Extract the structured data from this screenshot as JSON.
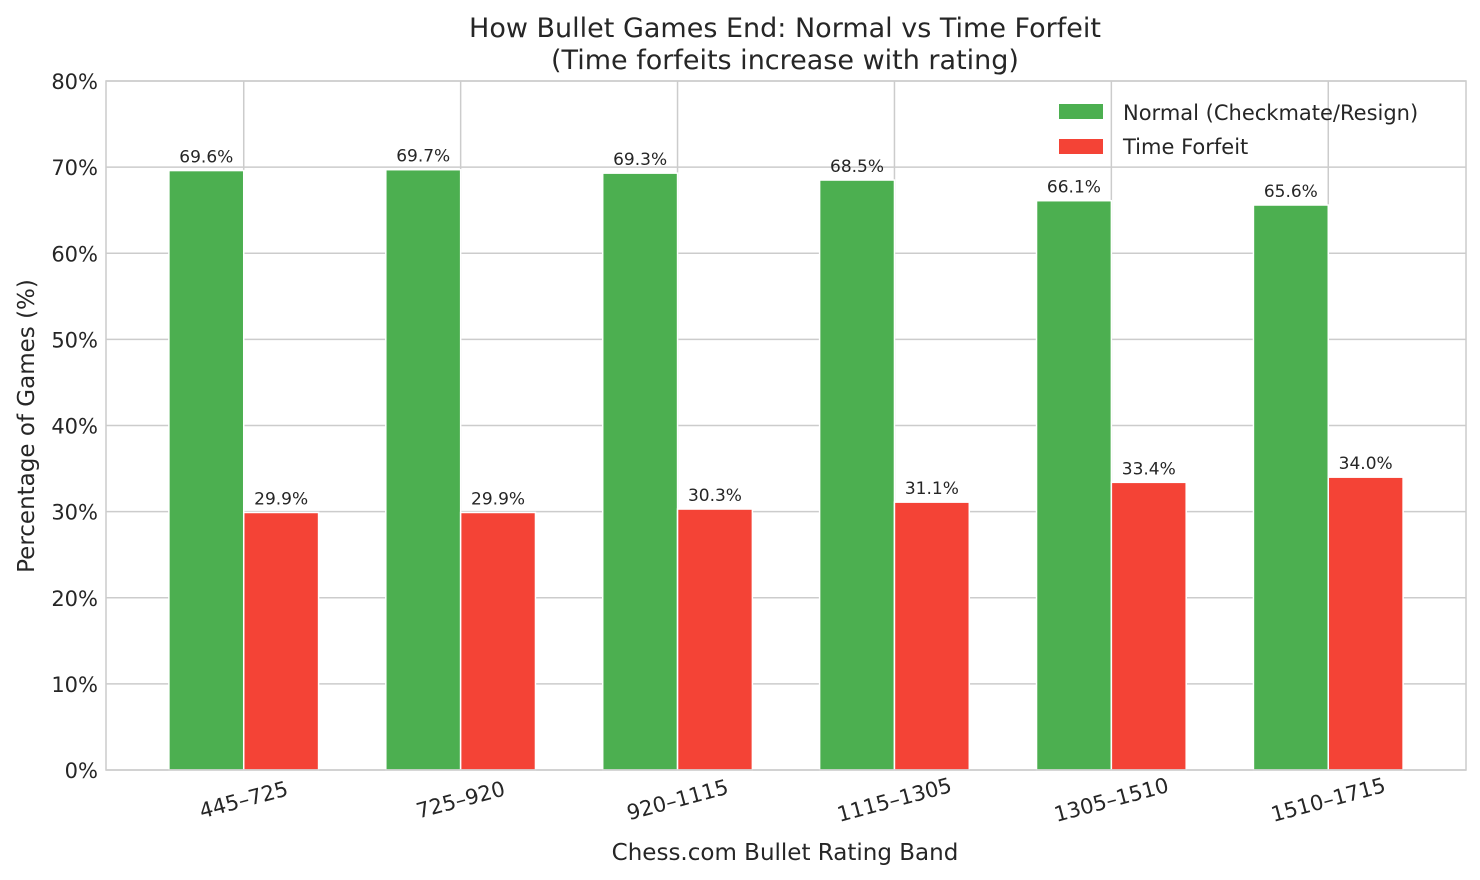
{
  "chart_data": {
    "type": "bar",
    "title": "How Bullet Games End: Normal vs Time Forfeit",
    "subtitle": "(Time forfeits increase with rating)",
    "xlabel": "Chess.com Bullet Rating Band",
    "ylabel": "Percentage of Games (%)",
    "ylim": [
      0,
      80
    ],
    "yticks": [
      "0%",
      "10%",
      "20%",
      "30%",
      "40%",
      "50%",
      "60%",
      "70%",
      "80%"
    ],
    "categories": [
      "445–725",
      "725–920",
      "920–1115",
      "1115–1305",
      "1305–1510",
      "1510–1715"
    ],
    "series": [
      {
        "name": "Normal (Checkmate/Resign)",
        "color": "#4caf50",
        "values": [
          69.6,
          69.7,
          69.3,
          68.5,
          66.1,
          65.6
        ],
        "labels": [
          "69.6%",
          "69.7%",
          "69.3%",
          "68.5%",
          "66.1%",
          "65.6%"
        ]
      },
      {
        "name": "Time Forfeit",
        "color": "#f44336",
        "values": [
          29.9,
          29.9,
          30.3,
          31.1,
          33.4,
          34.0
        ],
        "labels": [
          "29.9%",
          "29.9%",
          "30.3%",
          "31.1%",
          "33.4%",
          "34.0%"
        ]
      }
    ],
    "grid": true,
    "legend": "top-right"
  }
}
